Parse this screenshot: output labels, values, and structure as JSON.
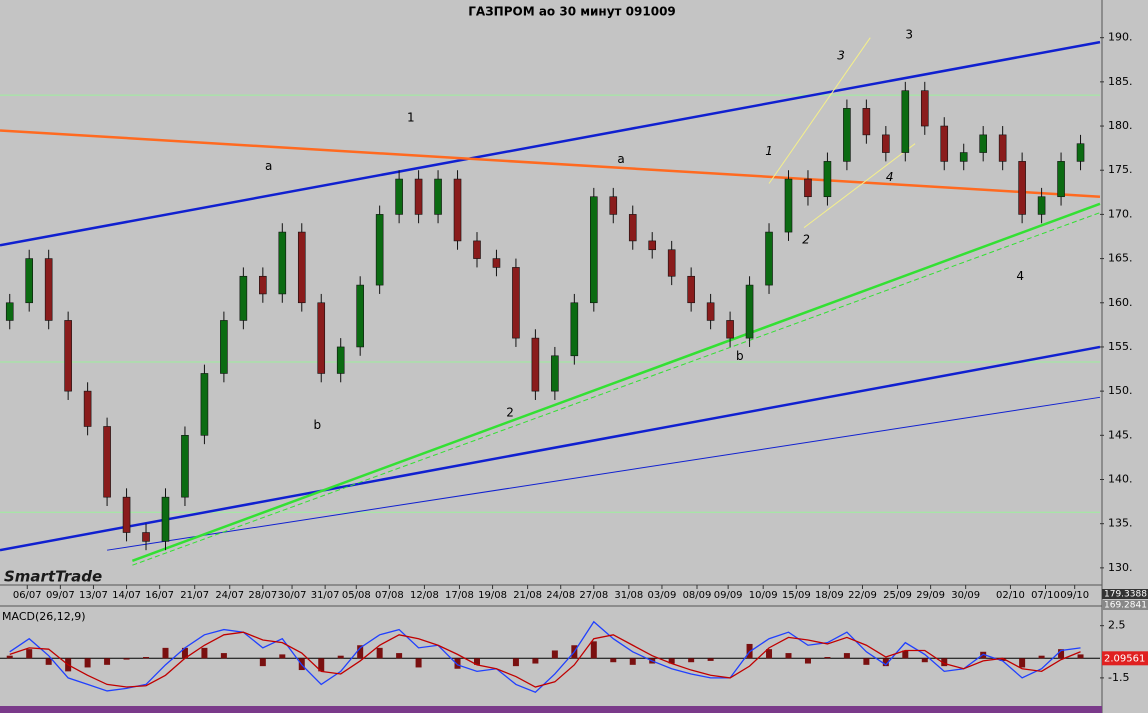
{
  "chart_data": [
    {
      "type": "candlestick",
      "title": "ГАЗПРОМ ао 30 минут 091009",
      "logo": "SmartTrade",
      "open": [
        158,
        160,
        165,
        158,
        150,
        146,
        138,
        134,
        133,
        138,
        145,
        152,
        158,
        163,
        161,
        168,
        160,
        152,
        155,
        162,
        170,
        174,
        170,
        174,
        167,
        165,
        164,
        156,
        150,
        154,
        160,
        172,
        170,
        167,
        166,
        163,
        160,
        158,
        156,
        162,
        168,
        174,
        172,
        176,
        182,
        179,
        177,
        184,
        180,
        176,
        177,
        179,
        176,
        170,
        172,
        176
      ],
      "high": [
        161,
        166,
        166,
        159,
        151,
        147,
        139,
        135,
        139,
        146,
        153,
        159,
        164,
        164,
        169,
        169,
        161,
        156,
        163,
        171,
        175,
        175,
        175,
        175,
        168,
        166,
        165,
        157,
        155,
        161,
        173,
        173,
        171,
        168,
        167,
        164,
        161,
        159,
        163,
        169,
        175,
        175,
        177,
        183,
        183,
        180,
        185,
        185,
        181,
        178,
        180,
        180,
        177,
        173,
        177,
        179
      ],
      "low": [
        157,
        159,
        157,
        149,
        145,
        137,
        133,
        132,
        132,
        137,
        144,
        151,
        157,
        160,
        160,
        159,
        151,
        151,
        154,
        161,
        169,
        169,
        169,
        166,
        164,
        163,
        155,
        149,
        149,
        153,
        159,
        169,
        166,
        165,
        162,
        159,
        157,
        155,
        155,
        161,
        167,
        171,
        171,
        175,
        178,
        176,
        176,
        179,
        175,
        175,
        176,
        175,
        169,
        169,
        171,
        175
      ],
      "close": [
        160,
        165,
        158,
        150,
        146,
        138,
        134,
        133,
        138,
        145,
        152,
        158,
        163,
        161,
        168,
        160,
        152,
        155,
        162,
        170,
        174,
        170,
        174,
        167,
        165,
        164,
        156,
        150,
        154,
        160,
        172,
        170,
        167,
        166,
        163,
        160,
        158,
        156,
        162,
        168,
        174,
        172,
        176,
        182,
        179,
        177,
        184,
        180,
        176,
        177,
        179,
        176,
        170,
        172,
        176,
        178
      ],
      "up_color": "#0b6b12",
      "down_color": "#8a1c1c",
      "xlim": [
        -0.5,
        56
      ],
      "ylim": [
        128.4,
        192
      ],
      "xticks": [
        {
          "value": 0.9,
          "label": "06/07"
        },
        {
          "value": 2.6,
          "label": "09/07"
        },
        {
          "value": 4.3,
          "label": "13/07"
        },
        {
          "value": 6.0,
          "label": "14/07"
        },
        {
          "value": 7.7,
          "label": "16/07"
        },
        {
          "value": 9.5,
          "label": "21/07"
        },
        {
          "value": 11.3,
          "label": "24/07"
        },
        {
          "value": 13.0,
          "label": "28/07"
        },
        {
          "value": 14.5,
          "label": "30/07"
        },
        {
          "value": 16.2,
          "label": "31/07"
        },
        {
          "value": 17.8,
          "label": "05/08"
        },
        {
          "value": 19.5,
          "label": "07/08"
        },
        {
          "value": 21.3,
          "label": "12/08"
        },
        {
          "value": 23.1,
          "label": "17/08"
        },
        {
          "value": 24.8,
          "label": "19/08"
        },
        {
          "value": 26.6,
          "label": "21/08"
        },
        {
          "value": 28.3,
          "label": "24/08"
        },
        {
          "value": 30.0,
          "label": "27/08"
        },
        {
          "value": 31.8,
          "label": "31/08"
        },
        {
          "value": 33.5,
          "label": "03/09"
        },
        {
          "value": 35.3,
          "label": "08/09"
        },
        {
          "value": 36.9,
          "label": "09/09"
        },
        {
          "value": 38.7,
          "label": "10/09"
        },
        {
          "value": 40.4,
          "label": "15/09"
        },
        {
          "value": 42.1,
          "label": "18/09"
        },
        {
          "value": 43.8,
          "label": "22/09"
        },
        {
          "value": 45.6,
          "label": "25/09"
        },
        {
          "value": 47.3,
          "label": "29/09"
        },
        {
          "value": 49.1,
          "label": "30/09"
        },
        {
          "value": 51.4,
          "label": "02/10"
        },
        {
          "value": 53.2,
          "label": "07/10"
        },
        {
          "value": 54.7,
          "label": "09/10"
        }
      ],
      "yticks": [
        {
          "value": 130,
          "label": "130."
        },
        {
          "value": 135,
          "label": "135."
        },
        {
          "value": 140,
          "label": "140."
        },
        {
          "value": 145,
          "label": "145."
        },
        {
          "value": 150,
          "label": "150."
        },
        {
          "value": 155,
          "label": "155."
        },
        {
          "value": 160,
          "label": "160."
        },
        {
          "value": 165,
          "label": "165."
        },
        {
          "value": 170,
          "label": "170."
        },
        {
          "value": 175,
          "label": "175."
        },
        {
          "value": 180,
          "label": "180."
        },
        {
          "value": 185,
          "label": "185."
        },
        {
          "value": 190,
          "label": "190."
        }
      ],
      "hlines": {
        "color": "#9df09d",
        "values": [
          183.5,
          153.3,
          136.3
        ]
      },
      "trendlines": [
        {
          "x": [
            -0.5,
            56
          ],
          "y": [
            166.5,
            189.5
          ],
          "color": "#1020d0",
          "weight": "thick",
          "dash": false
        },
        {
          "x": [
            -0.5,
            56
          ],
          "y": [
            132,
            155
          ],
          "color": "#1020d0",
          "weight": "thick",
          "dash": false
        },
        {
          "x": [
            5,
            56
          ],
          "y": [
            132,
            149.3
          ],
          "color": "#1020d0",
          "weight": "thin",
          "dash": false
        },
        {
          "x": [
            -0.5,
            56
          ],
          "y": [
            179.5,
            172
          ],
          "color": "#ff6a20",
          "weight": "thick",
          "dash": false
        },
        {
          "x": [
            6.3,
            56
          ],
          "y": [
            130.8,
            171.2
          ],
          "color": "#33e033",
          "weight": "thick",
          "dash": false
        },
        {
          "x": [
            6.3,
            56
          ],
          "y": [
            130.3,
            170.2
          ],
          "color": "#33e033",
          "weight": "thin",
          "dash": true
        },
        {
          "x": [
            39.0,
            44.2
          ],
          "y": [
            173.5,
            190
          ],
          "color": "#f5f08a",
          "weight": "thin",
          "dash": false
        },
        {
          "x": [
            40.8,
            46.5
          ],
          "y": [
            168.5,
            178
          ],
          "color": "#f5f08a",
          "weight": "thin",
          "dash": false
        }
      ],
      "annotations": [
        {
          "text": "1",
          "x": 20.6,
          "y": 180.9,
          "italic": false
        },
        {
          "text": "a",
          "x": 13.3,
          "y": 175.4,
          "italic": false
        },
        {
          "text": "b",
          "x": 15.8,
          "y": 146.1,
          "italic": false
        },
        {
          "text": "2",
          "x": 25.7,
          "y": 147.5,
          "italic": false
        },
        {
          "text": "a",
          "x": 31.4,
          "y": 176.2,
          "italic": false
        },
        {
          "text": "b",
          "x": 37.5,
          "y": 153.9,
          "italic": false
        },
        {
          "text": "1",
          "x": 39.0,
          "y": 177.1,
          "italic": true
        },
        {
          "text": "2",
          "x": 40.9,
          "y": 167.1,
          "italic": true
        },
        {
          "text": "3",
          "x": 42.7,
          "y": 187.9,
          "italic": true
        },
        {
          "text": "3",
          "x": 46.2,
          "y": 190.3,
          "italic": false
        },
        {
          "text": "4",
          "x": 45.2,
          "y": 174.2,
          "italic": true
        },
        {
          "text": "4",
          "x": 51.9,
          "y": 163.0,
          "italic": false
        }
      ],
      "readouts": [
        "179.3388",
        "169.2841"
      ]
    },
    {
      "type": "line",
      "title": "MACD(26,12,9)",
      "xlim": [
        -0.5,
        56
      ],
      "ylim": [
        -3.5,
        3.7
      ],
      "yticks": [
        2.5,
        -1.5
      ],
      "series": [
        {
          "color": "#2040ff",
          "values": [
            0.5,
            1.5,
            0.2,
            -1.5,
            -2.0,
            -2.5,
            -2.3,
            -2.0,
            -0.5,
            0.8,
            1.8,
            2.2,
            2.0,
            0.8,
            1.5,
            -0.5,
            -2.0,
            -1.0,
            0.8,
            1.8,
            2.2,
            0.8,
            1.0,
            -0.5,
            -1.0,
            -0.8,
            -2.0,
            -2.6,
            -1.2,
            0.5,
            2.8,
            1.5,
            0.5,
            -0.2,
            -0.8,
            -1.2,
            -1.5,
            -1.5,
            0.5,
            1.5,
            2.0,
            1.0,
            1.2,
            2.0,
            0.5,
            -0.5,
            1.2,
            0.3,
            -1.0,
            -0.8,
            0.3,
            -0.2,
            -1.5,
            -0.8,
            0.6,
            0.8
          ]
        },
        {
          "color": "#c00000",
          "values": [
            0.3,
            0.8,
            0.7,
            -0.5,
            -1.3,
            -2.0,
            -2.2,
            -2.1,
            -1.3,
            0.0,
            1.0,
            1.8,
            2.0,
            1.4,
            1.2,
            0.4,
            -1.0,
            -1.2,
            -0.2,
            1.0,
            1.8,
            1.5,
            1.0,
            0.3,
            -0.5,
            -0.8,
            -1.4,
            -2.2,
            -1.8,
            -0.5,
            1.5,
            1.8,
            1.0,
            0.2,
            -0.4,
            -0.9,
            -1.3,
            -1.5,
            -0.6,
            0.8,
            1.6,
            1.4,
            1.1,
            1.6,
            1.0,
            0.1,
            0.6,
            0.6,
            -0.4,
            -0.8,
            -0.2,
            0.0,
            -0.8,
            -1.0,
            -0.1,
            0.5
          ]
        }
      ],
      "readout": "2.09561"
    }
  ]
}
